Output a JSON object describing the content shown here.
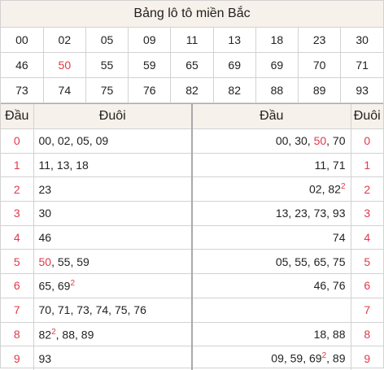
{
  "title": "Bảng lô tô miền Bắc",
  "grid": [
    [
      "00",
      "02",
      "05",
      "09",
      "11",
      "13",
      "18",
      "23",
      "30"
    ],
    [
      "46",
      "50",
      "55",
      "59",
      "65",
      "69",
      "69",
      "70",
      "71"
    ],
    [
      "73",
      "74",
      "75",
      "76",
      "82",
      "82",
      "88",
      "89",
      "93"
    ]
  ],
  "highlighted": [
    "50"
  ],
  "left_header": {
    "dau": "Đầu",
    "duoi": "Đuôi"
  },
  "right_header": {
    "dau": "Đầu",
    "duoi": "Đuôi"
  },
  "left_rows": [
    {
      "idx": "0",
      "vals": "00, 02, 05, 09"
    },
    {
      "idx": "1",
      "vals": "11, 13, 18"
    },
    {
      "idx": "2",
      "vals": "23"
    },
    {
      "idx": "3",
      "vals": "30"
    },
    {
      "idx": "4",
      "vals": "46"
    },
    {
      "idx": "5",
      "vals": "50, 55, 59"
    },
    {
      "idx": "6",
      "vals": "65, 69²"
    },
    {
      "idx": "7",
      "vals": "70, 71, 73, 74, 75, 76"
    },
    {
      "idx": "8",
      "vals": "82², 88, 89"
    },
    {
      "idx": "9",
      "vals": "93"
    }
  ],
  "right_rows": [
    {
      "idx": "0",
      "vals": "00, 30, 50, 70"
    },
    {
      "idx": "1",
      "vals": "11, 71"
    },
    {
      "idx": "2",
      "vals": "02, 82²"
    },
    {
      "idx": "3",
      "vals": "13, 23, 73, 93"
    },
    {
      "idx": "4",
      "vals": "74"
    },
    {
      "idx": "5",
      "vals": "05, 55, 65, 75"
    },
    {
      "idx": "6",
      "vals": "46, 76"
    },
    {
      "idx": "7",
      "vals": ""
    },
    {
      "idx": "8",
      "vals": "18, 88"
    },
    {
      "idx": "9",
      "vals": "09, 59, 69², 89"
    }
  ],
  "colors": {
    "accent_red": "#e0394a",
    "header_bg": "#f6f1ea",
    "border": "#d2d2d2"
  }
}
